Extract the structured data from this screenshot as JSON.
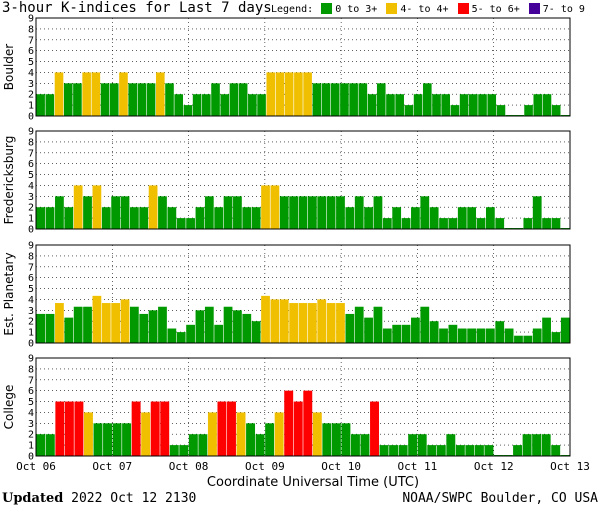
{
  "title": "3-hour K-indices for Last 7 days",
  "legend": {
    "label": "Legend:",
    "items": [
      {
        "label": "0 to 3+",
        "color": "#009900"
      },
      {
        "label": "4- to 4+",
        "color": "#f0c000"
      },
      {
        "label": "5- to 6+",
        "color": "#ff0000"
      },
      {
        "label": "7- to 9",
        "color": "#440099"
      }
    ]
  },
  "footer": {
    "updated_label": "Updated",
    "updated_value": "2022 Oct 12 2130",
    "credit": "NOAA/SWPC Boulder, CO USA"
  },
  "chart_data": {
    "type": "bar",
    "xlabel": "Coordinate Universal Time (UTC)",
    "x_ticks": [
      "Oct 06",
      "Oct 07",
      "Oct 08",
      "Oct 09",
      "Oct 10",
      "Oct 11",
      "Oct 12",
      "Oct 13"
    ],
    "ylim": [
      0,
      9
    ],
    "y_ticks": [
      "0",
      "1",
      "2",
      "3",
      "4",
      "5",
      "6",
      "7",
      "8",
      "9"
    ],
    "grid": "dotted",
    "panels": [
      {
        "name": "Boulder",
        "values": [
          2,
          2,
          4,
          3,
          3,
          4,
          4,
          3,
          3,
          4,
          3,
          3,
          3,
          4,
          3,
          2,
          1,
          2,
          2,
          3,
          2,
          3,
          3,
          2,
          2,
          4,
          4,
          4,
          4,
          4,
          3,
          3,
          3,
          3,
          3,
          3,
          2,
          3,
          2,
          2,
          1,
          2,
          3,
          2,
          2,
          1,
          2,
          2,
          2,
          2,
          1,
          0,
          0,
          1,
          2,
          2,
          1,
          0
        ]
      },
      {
        "name": "Fredericksburg",
        "values": [
          2,
          2,
          3,
          2,
          4,
          3,
          4,
          2,
          3,
          3,
          2,
          2,
          4,
          3,
          2,
          1,
          1,
          2,
          3,
          2,
          3,
          3,
          2,
          2,
          4,
          4,
          3,
          3,
          3,
          3,
          3,
          3,
          3,
          2,
          3,
          2,
          3,
          1,
          2,
          1,
          2,
          3,
          2,
          1,
          1,
          2,
          2,
          1,
          2,
          1,
          0,
          0,
          1,
          3,
          1,
          1,
          0
        ]
      },
      {
        "name": "Est. Planetary",
        "values": [
          2.67,
          2.67,
          3.67,
          2.33,
          3.33,
          3.33,
          4.33,
          3.67,
          3.67,
          4,
          3.33,
          2.67,
          3,
          3.33,
          1.33,
          1,
          1.67,
          3,
          3.33,
          1.67,
          3.33,
          3,
          2.67,
          2,
          4.33,
          4,
          4,
          3.67,
          3.67,
          3.67,
          4,
          3.67,
          3.67,
          2.67,
          3.33,
          2.33,
          3.33,
          1.33,
          1.67,
          1.67,
          2.33,
          3.33,
          2,
          1.33,
          1.67,
          1.33,
          1.33,
          1.33,
          1.33,
          2,
          1.33,
          0.67,
          0.67,
          1.33,
          2.33,
          1,
          2.33
        ]
      },
      {
        "name": "College",
        "values": [
          2,
          2,
          5,
          5,
          5,
          4,
          3,
          3,
          3,
          3,
          5,
          4,
          5,
          5,
          1,
          1,
          2,
          2,
          4,
          5,
          5,
          4,
          3,
          2,
          3,
          4,
          6,
          5,
          6,
          4,
          3,
          3,
          3,
          2,
          2,
          5,
          1,
          1,
          1,
          2,
          2,
          1,
          1,
          2,
          1,
          1,
          1,
          1,
          0,
          0,
          1,
          2,
          2,
          2,
          1,
          0
        ]
      }
    ]
  }
}
